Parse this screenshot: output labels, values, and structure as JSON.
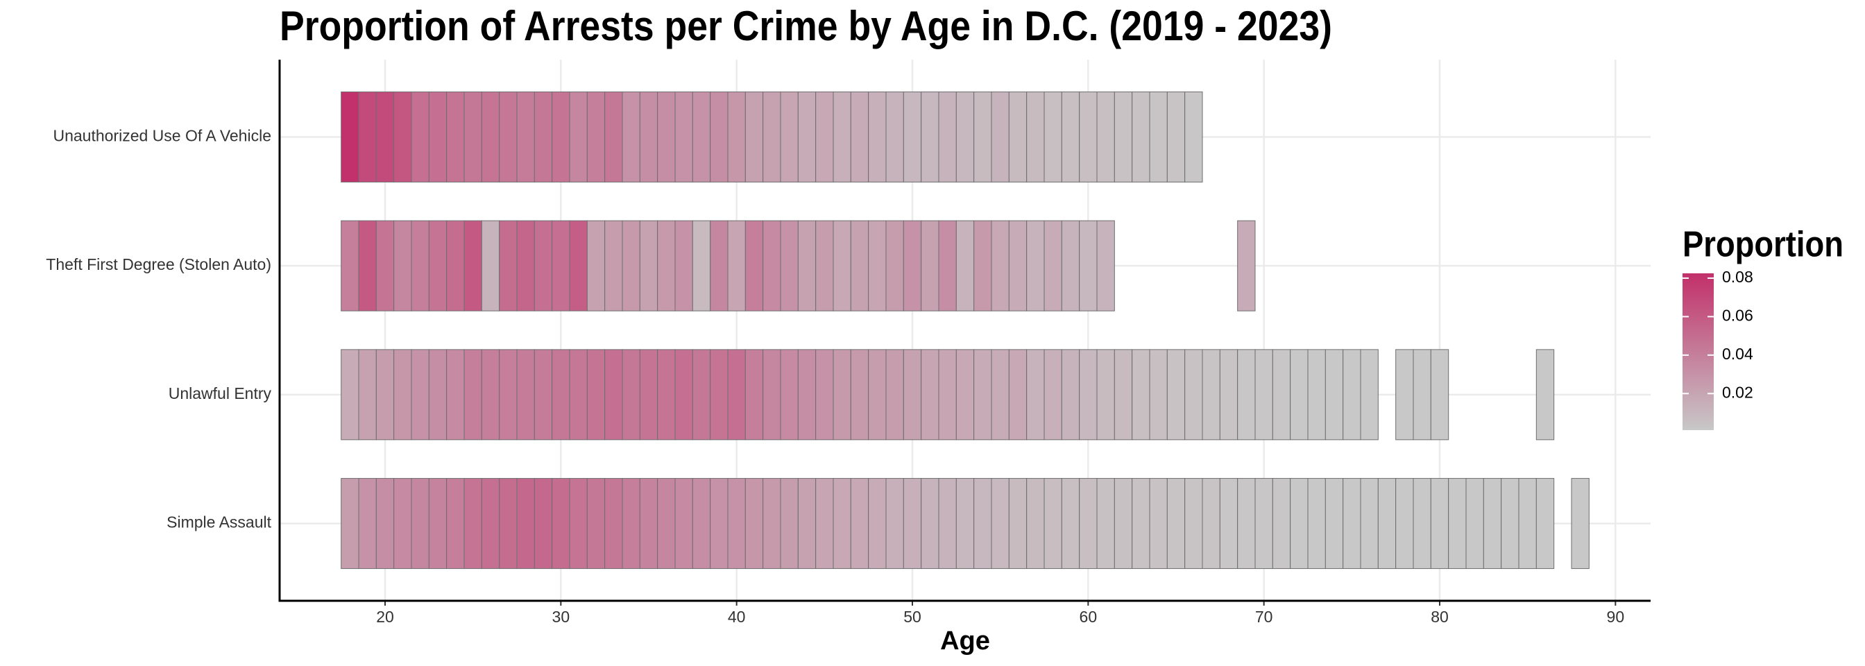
{
  "chart_data": {
    "type": "heatmap",
    "title": "Proportion of Arrests per Crime by Age in D.C. (2019 - 2023)",
    "xlabel": "Age",
    "legend_title": "Proportion",
    "categories": [
      "Unauthorized Use Of A Vehicle",
      "Theft First Degree (Stolen Auto)",
      "Unlawful Entry",
      "Simple Assault"
    ],
    "series": [
      {
        "x": [
          18,
          19,
          20,
          21,
          22,
          23,
          24,
          25,
          26,
          27,
          28,
          29,
          30,
          31,
          32,
          33,
          34,
          35,
          36,
          37,
          38,
          39,
          40,
          41,
          42,
          43,
          44,
          45,
          46,
          47,
          48,
          49,
          50,
          51,
          52,
          53,
          54,
          55,
          56,
          57,
          58,
          59,
          60,
          61,
          62,
          63,
          64,
          65,
          66
        ],
        "values": [
          0.082,
          0.068,
          0.068,
          0.062,
          0.048,
          0.048,
          0.046,
          0.044,
          0.046,
          0.044,
          0.042,
          0.044,
          0.046,
          0.036,
          0.04,
          0.044,
          0.03,
          0.032,
          0.032,
          0.03,
          0.03,
          0.032,
          0.028,
          0.022,
          0.022,
          0.02,
          0.016,
          0.018,
          0.014,
          0.016,
          0.014,
          0.012,
          0.01,
          0.01,
          0.012,
          0.01,
          0.008,
          0.012,
          0.008,
          0.008,
          0.006,
          0.006,
          0.006,
          0.006,
          0.004,
          0.004,
          0.003,
          0.003,
          0.002
        ]
      },
      {
        "x": [
          18,
          19,
          20,
          21,
          22,
          23,
          24,
          25,
          26,
          27,
          28,
          29,
          30,
          31,
          32,
          33,
          34,
          35,
          36,
          37,
          38,
          39,
          40,
          41,
          42,
          43,
          44,
          45,
          46,
          47,
          48,
          49,
          50,
          51,
          52,
          53,
          54,
          55,
          56,
          57,
          58,
          59,
          60,
          61,
          69
        ],
        "values": [
          0.04,
          0.06,
          0.046,
          0.036,
          0.04,
          0.046,
          0.05,
          0.06,
          0.012,
          0.05,
          0.054,
          0.048,
          0.048,
          0.058,
          0.022,
          0.024,
          0.026,
          0.022,
          0.026,
          0.03,
          0.008,
          0.036,
          0.02,
          0.04,
          0.034,
          0.03,
          0.022,
          0.024,
          0.018,
          0.022,
          0.02,
          0.024,
          0.03,
          0.022,
          0.032,
          0.012,
          0.026,
          0.018,
          0.016,
          0.012,
          0.016,
          0.012,
          0.01,
          0.012,
          0.016
        ]
      },
      {
        "x": [
          18,
          19,
          20,
          21,
          22,
          23,
          24,
          25,
          26,
          27,
          28,
          29,
          30,
          31,
          32,
          33,
          34,
          35,
          36,
          37,
          38,
          39,
          40,
          41,
          42,
          43,
          44,
          45,
          46,
          47,
          48,
          49,
          50,
          51,
          52,
          53,
          54,
          55,
          56,
          57,
          58,
          59,
          60,
          61,
          62,
          63,
          64,
          65,
          66,
          67,
          68,
          69,
          70,
          71,
          72,
          73,
          74,
          75,
          76,
          78,
          79,
          80,
          86
        ],
        "values": [
          0.016,
          0.022,
          0.024,
          0.028,
          0.03,
          0.032,
          0.034,
          0.04,
          0.04,
          0.04,
          0.042,
          0.042,
          0.044,
          0.044,
          0.046,
          0.048,
          0.044,
          0.046,
          0.046,
          0.048,
          0.044,
          0.046,
          0.048,
          0.04,
          0.036,
          0.034,
          0.032,
          0.03,
          0.026,
          0.026,
          0.024,
          0.024,
          0.022,
          0.02,
          0.02,
          0.018,
          0.016,
          0.016,
          0.018,
          0.012,
          0.014,
          0.012,
          0.01,
          0.008,
          0.008,
          0.006,
          0.006,
          0.004,
          0.004,
          0.003,
          0.003,
          0.002,
          0.002,
          0.002,
          0.001,
          0.001,
          0.001,
          0.001,
          0.001,
          0.001,
          0.001,
          0.001,
          0.001
        ]
      },
      {
        "x": [
          18,
          19,
          20,
          21,
          22,
          23,
          24,
          25,
          26,
          27,
          28,
          29,
          30,
          31,
          32,
          33,
          34,
          35,
          36,
          37,
          38,
          39,
          40,
          41,
          42,
          43,
          44,
          45,
          46,
          47,
          48,
          49,
          50,
          51,
          52,
          53,
          54,
          55,
          56,
          57,
          58,
          59,
          60,
          61,
          62,
          63,
          64,
          65,
          66,
          67,
          68,
          69,
          70,
          71,
          72,
          73,
          74,
          75,
          76,
          77,
          78,
          79,
          80,
          81,
          82,
          83,
          84,
          85,
          86,
          88
        ],
        "values": [
          0.024,
          0.03,
          0.032,
          0.034,
          0.036,
          0.038,
          0.04,
          0.046,
          0.048,
          0.05,
          0.052,
          0.052,
          0.05,
          0.046,
          0.044,
          0.044,
          0.04,
          0.038,
          0.036,
          0.034,
          0.032,
          0.03,
          0.03,
          0.028,
          0.026,
          0.024,
          0.022,
          0.02,
          0.018,
          0.018,
          0.016,
          0.014,
          0.014,
          0.012,
          0.012,
          0.01,
          0.01,
          0.009,
          0.008,
          0.008,
          0.007,
          0.006,
          0.006,
          0.005,
          0.005,
          0.004,
          0.004,
          0.003,
          0.003,
          0.003,
          0.002,
          0.002,
          0.002,
          0.002,
          0.001,
          0.001,
          0.001,
          0.001,
          0.001,
          0.001,
          0.001,
          0.001,
          0.001,
          0.001,
          0.001,
          0.001,
          0.001,
          0.001,
          0.001,
          0.001
        ]
      }
    ],
    "xlim": [
      14,
      92
    ],
    "xticks": [
      20,
      30,
      40,
      50,
      60,
      70,
      80,
      90
    ],
    "clim": [
      0.001,
      0.0825
    ],
    "legend_ticks": [
      0.02,
      0.04,
      0.06,
      0.08
    ],
    "color_low": "#c8c8c8",
    "color_high": "#c2306a",
    "grid": true
  }
}
